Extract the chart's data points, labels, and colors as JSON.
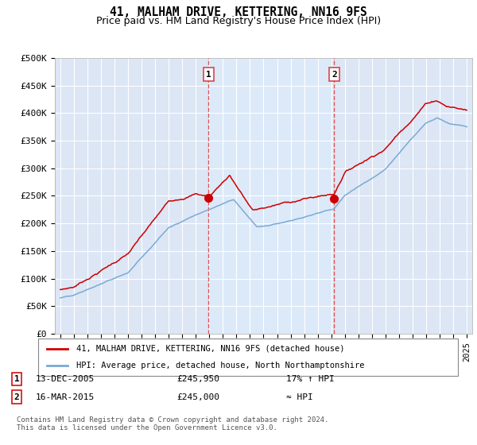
{
  "title": "41, MALHAM DRIVE, KETTERING, NN16 9FS",
  "subtitle": "Price paid vs. HM Land Registry's House Price Index (HPI)",
  "ylabel_ticks": [
    "£0",
    "£50K",
    "£100K",
    "£150K",
    "£200K",
    "£250K",
    "£300K",
    "£350K",
    "£400K",
    "£450K",
    "£500K"
  ],
  "ytick_values": [
    0,
    50000,
    100000,
    150000,
    200000,
    250000,
    300000,
    350000,
    400000,
    450000,
    500000
  ],
  "ylim": [
    0,
    500000
  ],
  "xlim_start": 1994.6,
  "xlim_end": 2025.4,
  "sale1_x": 2005.95,
  "sale1_y": 245950,
  "sale2_x": 2015.21,
  "sale2_y": 245000,
  "sale1_label": "1",
  "sale2_label": "2",
  "vline1_x": 2005.95,
  "vline2_x": 2015.21,
  "shade_color": "#dce9f8",
  "legend_line1": "41, MALHAM DRIVE, KETTERING, NN16 9FS (detached house)",
  "legend_line2": "HPI: Average price, detached house, North Northamptonshire",
  "annotation1_date": "13-DEC-2005",
  "annotation1_price": "£245,950",
  "annotation1_hpi": "17% ↑ HPI",
  "annotation2_date": "16-MAR-2015",
  "annotation2_price": "£245,000",
  "annotation2_hpi": "≈ HPI",
  "footer": "Contains HM Land Registry data © Crown copyright and database right 2024.\nThis data is licensed under the Open Government Licence v3.0.",
  "bg_color": "#ffffff",
  "plot_bg_color": "#dce6f5",
  "grid_color": "#ffffff",
  "hpi_color": "#7baad4",
  "price_color": "#cc0000",
  "vline_color": "#dd4444",
  "title_fontsize": 11,
  "subtitle_fontsize": 9
}
